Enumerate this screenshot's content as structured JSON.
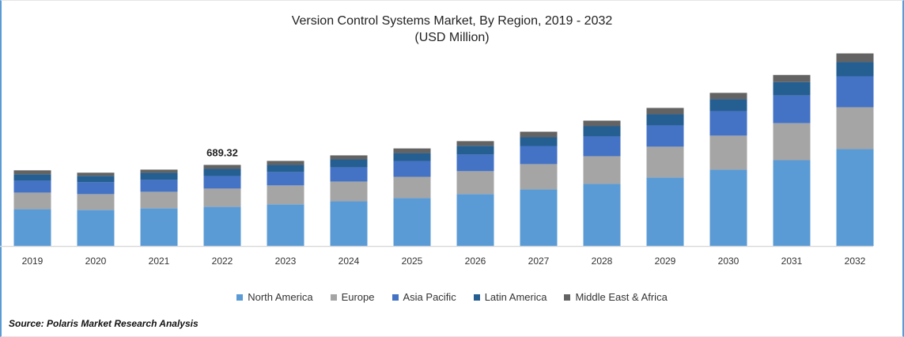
{
  "chart_data": {
    "type": "bar",
    "stacked": true,
    "title": "Version Control Systems Market, By Region, 2019 - 2032",
    "subtitle": "(USD Million)",
    "xlabel": "",
    "ylabel": "",
    "ylim": [
      0,
      1700
    ],
    "grid": false,
    "legend_position": "bottom",
    "categories": [
      "2019",
      "2020",
      "2021",
      "2022",
      "2023",
      "2024",
      "2025",
      "2026",
      "2027",
      "2028",
      "2029",
      "2030",
      "2031",
      "2032"
    ],
    "series": [
      {
        "name": "North America",
        "color": "#5B9BD5",
        "values": [
          313,
          307,
          320,
          334,
          354,
          380,
          407,
          441,
          481,
          528,
          582,
          649,
          729,
          823
        ]
      },
      {
        "name": "Europe",
        "color": "#A5A5A5",
        "values": [
          141,
          134,
          141,
          154,
          161,
          168,
          181,
          195,
          215,
          235,
          262,
          289,
          315,
          356
        ]
      },
      {
        "name": "Asia Pacific",
        "color": "#4472C4",
        "values": [
          101,
          101,
          101,
          107,
          114,
          121,
          134,
          141,
          154,
          168,
          181,
          208,
          235,
          262
        ]
      },
      {
        "name": "Latin America",
        "color": "#255E91",
        "values": [
          54,
          54,
          60,
          60,
          60,
          67,
          67,
          74,
          74,
          87,
          94,
          101,
          114,
          121
        ]
      },
      {
        "name": "Middle East & Africa",
        "color": "#636363",
        "values": [
          34,
          27,
          27,
          34,
          34,
          34,
          40,
          40,
          47,
          47,
          54,
          54,
          60,
          74
        ]
      }
    ],
    "annotations": [
      {
        "category": "2022",
        "text": "689.32"
      }
    ]
  },
  "source": "Source: Polaris Market Research Analysis"
}
